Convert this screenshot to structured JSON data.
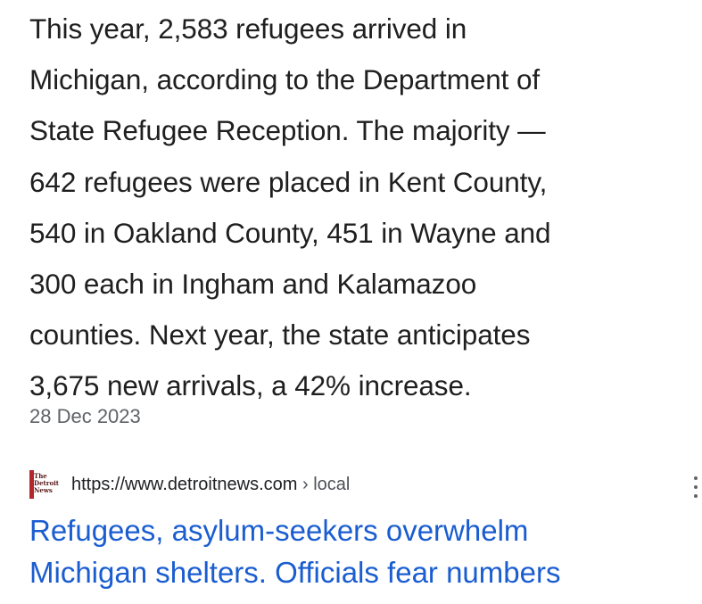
{
  "snippet": {
    "text": "This year, 2,583 refugees arrived in\nMichigan, according to the Department of\nState Refugee Reception. The majority —\n642 refugees were placed in Kent County,\n540 in Oakland County, 451 in Wayne and\n300 each in Ingham and Kalamazoo\ncounties. Next year, the state anticipates\n3,675 new arrivals, a 42% increase."
  },
  "date": "28 Dec 2023",
  "result": {
    "favicon_text": "The\nDetroit\nNews",
    "url_base": "https://www.detroitnews.com",
    "url_path": " › local",
    "more_icon": "vertical-dots-icon",
    "title": "Refugees, asylum-seekers overwhelm\nMichigan shelters. Officials fear numbers"
  },
  "colors": {
    "link": "#1a5dd0",
    "text": "#1f1f1f",
    "muted": "#5f6368",
    "brand": "#b3262c"
  }
}
